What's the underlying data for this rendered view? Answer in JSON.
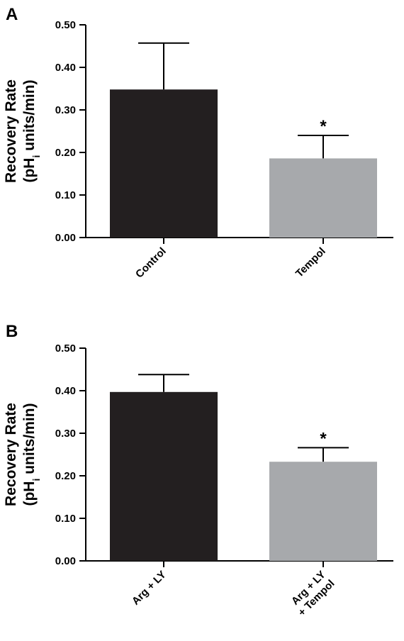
{
  "chart_data": [
    {
      "panel": "A",
      "type": "bar",
      "categories": [
        "Control",
        "Tempol"
      ],
      "values": [
        0.348,
        0.186
      ],
      "error_upper": [
        0.457,
        0.24
      ],
      "colors": [
        "#231f20",
        "#a7a9ac"
      ],
      "significance": [
        "",
        "*"
      ],
      "ylabel_line1": "Recovery Rate",
      "ylabel_line2_prefix": "(pH",
      "ylabel_line2_sub": "i",
      "ylabel_line2_suffix": " units/min)",
      "ylim": [
        0,
        0.5
      ],
      "yticks": [
        "0.00",
        "0.10",
        "0.20",
        "0.30",
        "0.40",
        "0.50"
      ]
    },
    {
      "panel": "B",
      "type": "bar",
      "categories": [
        "Arg + LY",
        "Arg + LY|+ Tempol"
      ],
      "values": [
        0.397,
        0.233
      ],
      "error_upper": [
        0.438,
        0.266
      ],
      "colors": [
        "#231f20",
        "#a7a9ac"
      ],
      "significance": [
        "",
        "*"
      ],
      "ylabel_line1": "Recovery Rate",
      "ylabel_line2_prefix": "(pH",
      "ylabel_line2_sub": "i",
      "ylabel_line2_suffix": " units/min)",
      "ylim": [
        0,
        0.5
      ],
      "yticks": [
        "0.00",
        "0.10",
        "0.20",
        "0.30",
        "0.40",
        "0.50"
      ]
    }
  ]
}
